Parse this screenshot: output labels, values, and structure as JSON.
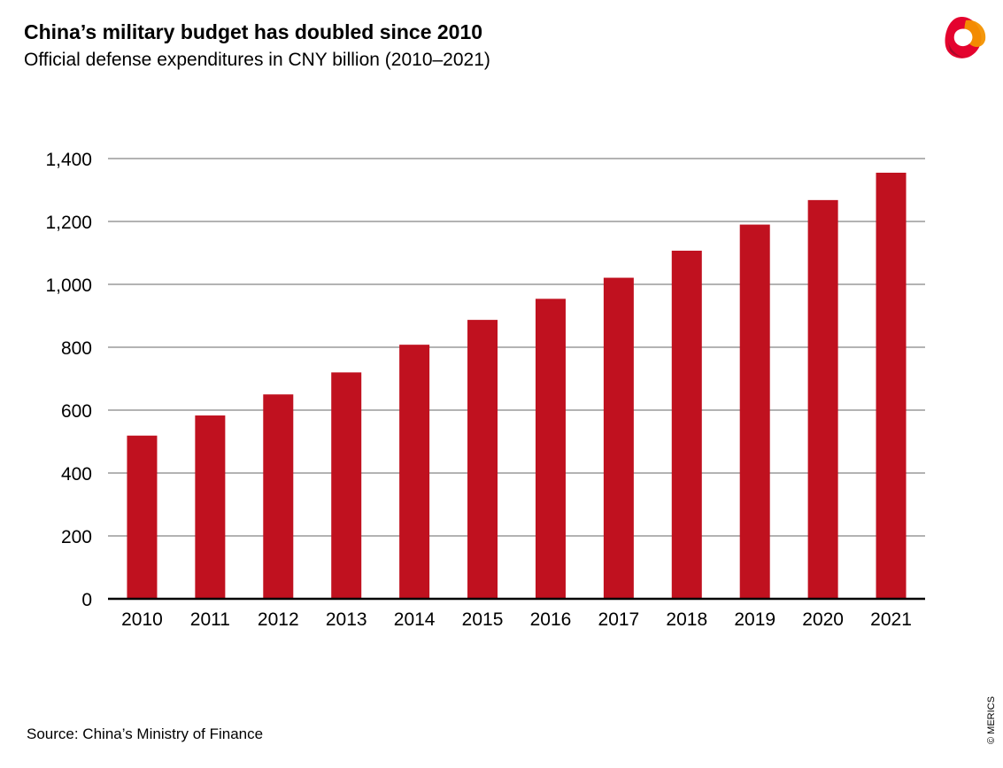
{
  "header": {
    "title": "China’s military budget has doubled since 2010",
    "subtitle": "Official defense expenditures in CNY billion (2010–2021)"
  },
  "footer": {
    "source": "Source: China’s Ministry of Finance",
    "copyright": "© MERICS"
  },
  "logo": {
    "icon": "merics-logo-icon",
    "colors": [
      "#e4032e",
      "#f39200",
      "#c00d2f"
    ]
  },
  "colors": {
    "bar": "#c0111f",
    "grid": "#b3b3b3",
    "axis": "#000000"
  },
  "chart_data": {
    "type": "bar",
    "title": "China’s military budget has doubled since 2010",
    "subtitle": "Official defense expenditures in CNY billion (2010–2021)",
    "categories": [
      "2010",
      "2011",
      "2012",
      "2013",
      "2014",
      "2015",
      "2016",
      "2017",
      "2018",
      "2019",
      "2020",
      "2021"
    ],
    "values": [
      519,
      583,
      650,
      720,
      808,
      887,
      954,
      1021,
      1107,
      1190,
      1268,
      1355
    ],
    "ylim": [
      0,
      1400
    ],
    "yticks": [
      0,
      200,
      400,
      600,
      800,
      1000,
      1200,
      1400
    ],
    "ytick_labels": [
      "0",
      "200",
      "400",
      "600",
      "800",
      "1,000",
      "1,200",
      "1,400"
    ],
    "xlabel": "",
    "ylabel": "",
    "grid": true,
    "legend": "none"
  }
}
